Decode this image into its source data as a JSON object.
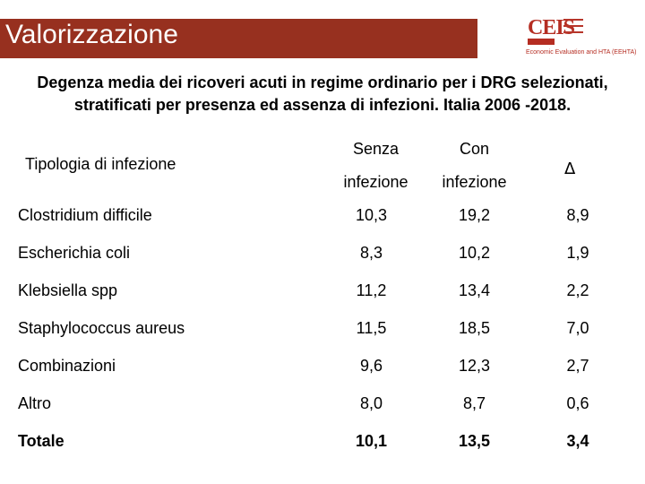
{
  "header": {
    "title": "Valorizzazione",
    "logo_letters": "CEIS",
    "logo_caption": "Economic Evaluation and HTA (EEHTA)"
  },
  "subtitle": "Degenza media dei ricoveri acuti in regime ordinario per i DRG selezionati, stratificati per presenza ed assenza di infezioni. Italia 2006 -2018.",
  "table": {
    "col_type": "Tipologia di infezione",
    "col_without_line1": "Senza",
    "col_without_line2": "infezione",
    "col_with_line1": "Con",
    "col_with_line2": "infezione",
    "col_delta": "Δ",
    "rows": [
      {
        "label": "Clostridium difficile",
        "without": "10,3",
        "with": "19,2",
        "delta": "8,9"
      },
      {
        "label": "Escherichia coli",
        "without": "8,3",
        "with": "10,2",
        "delta": "1,9"
      },
      {
        "label": "Klebsiella spp",
        "without": "11,2",
        "with": "13,4",
        "delta": "2,2"
      },
      {
        "label": "Staphylococcus aureus",
        "without": "11,5",
        "with": "18,5",
        "delta": "7,0"
      },
      {
        "label": "Combinazioni",
        "without": "9,6",
        "with": "12,3",
        "delta": "2,7"
      },
      {
        "label": "Altro",
        "without": "8,0",
        "with": "8,7",
        "delta": "0,6"
      },
      {
        "label": "Totale",
        "without": "10,1",
        "with": "13,5",
        "delta": "3,4"
      }
    ]
  },
  "colors": {
    "title_bar": "#97301f",
    "logo_red": "#b52d22"
  }
}
